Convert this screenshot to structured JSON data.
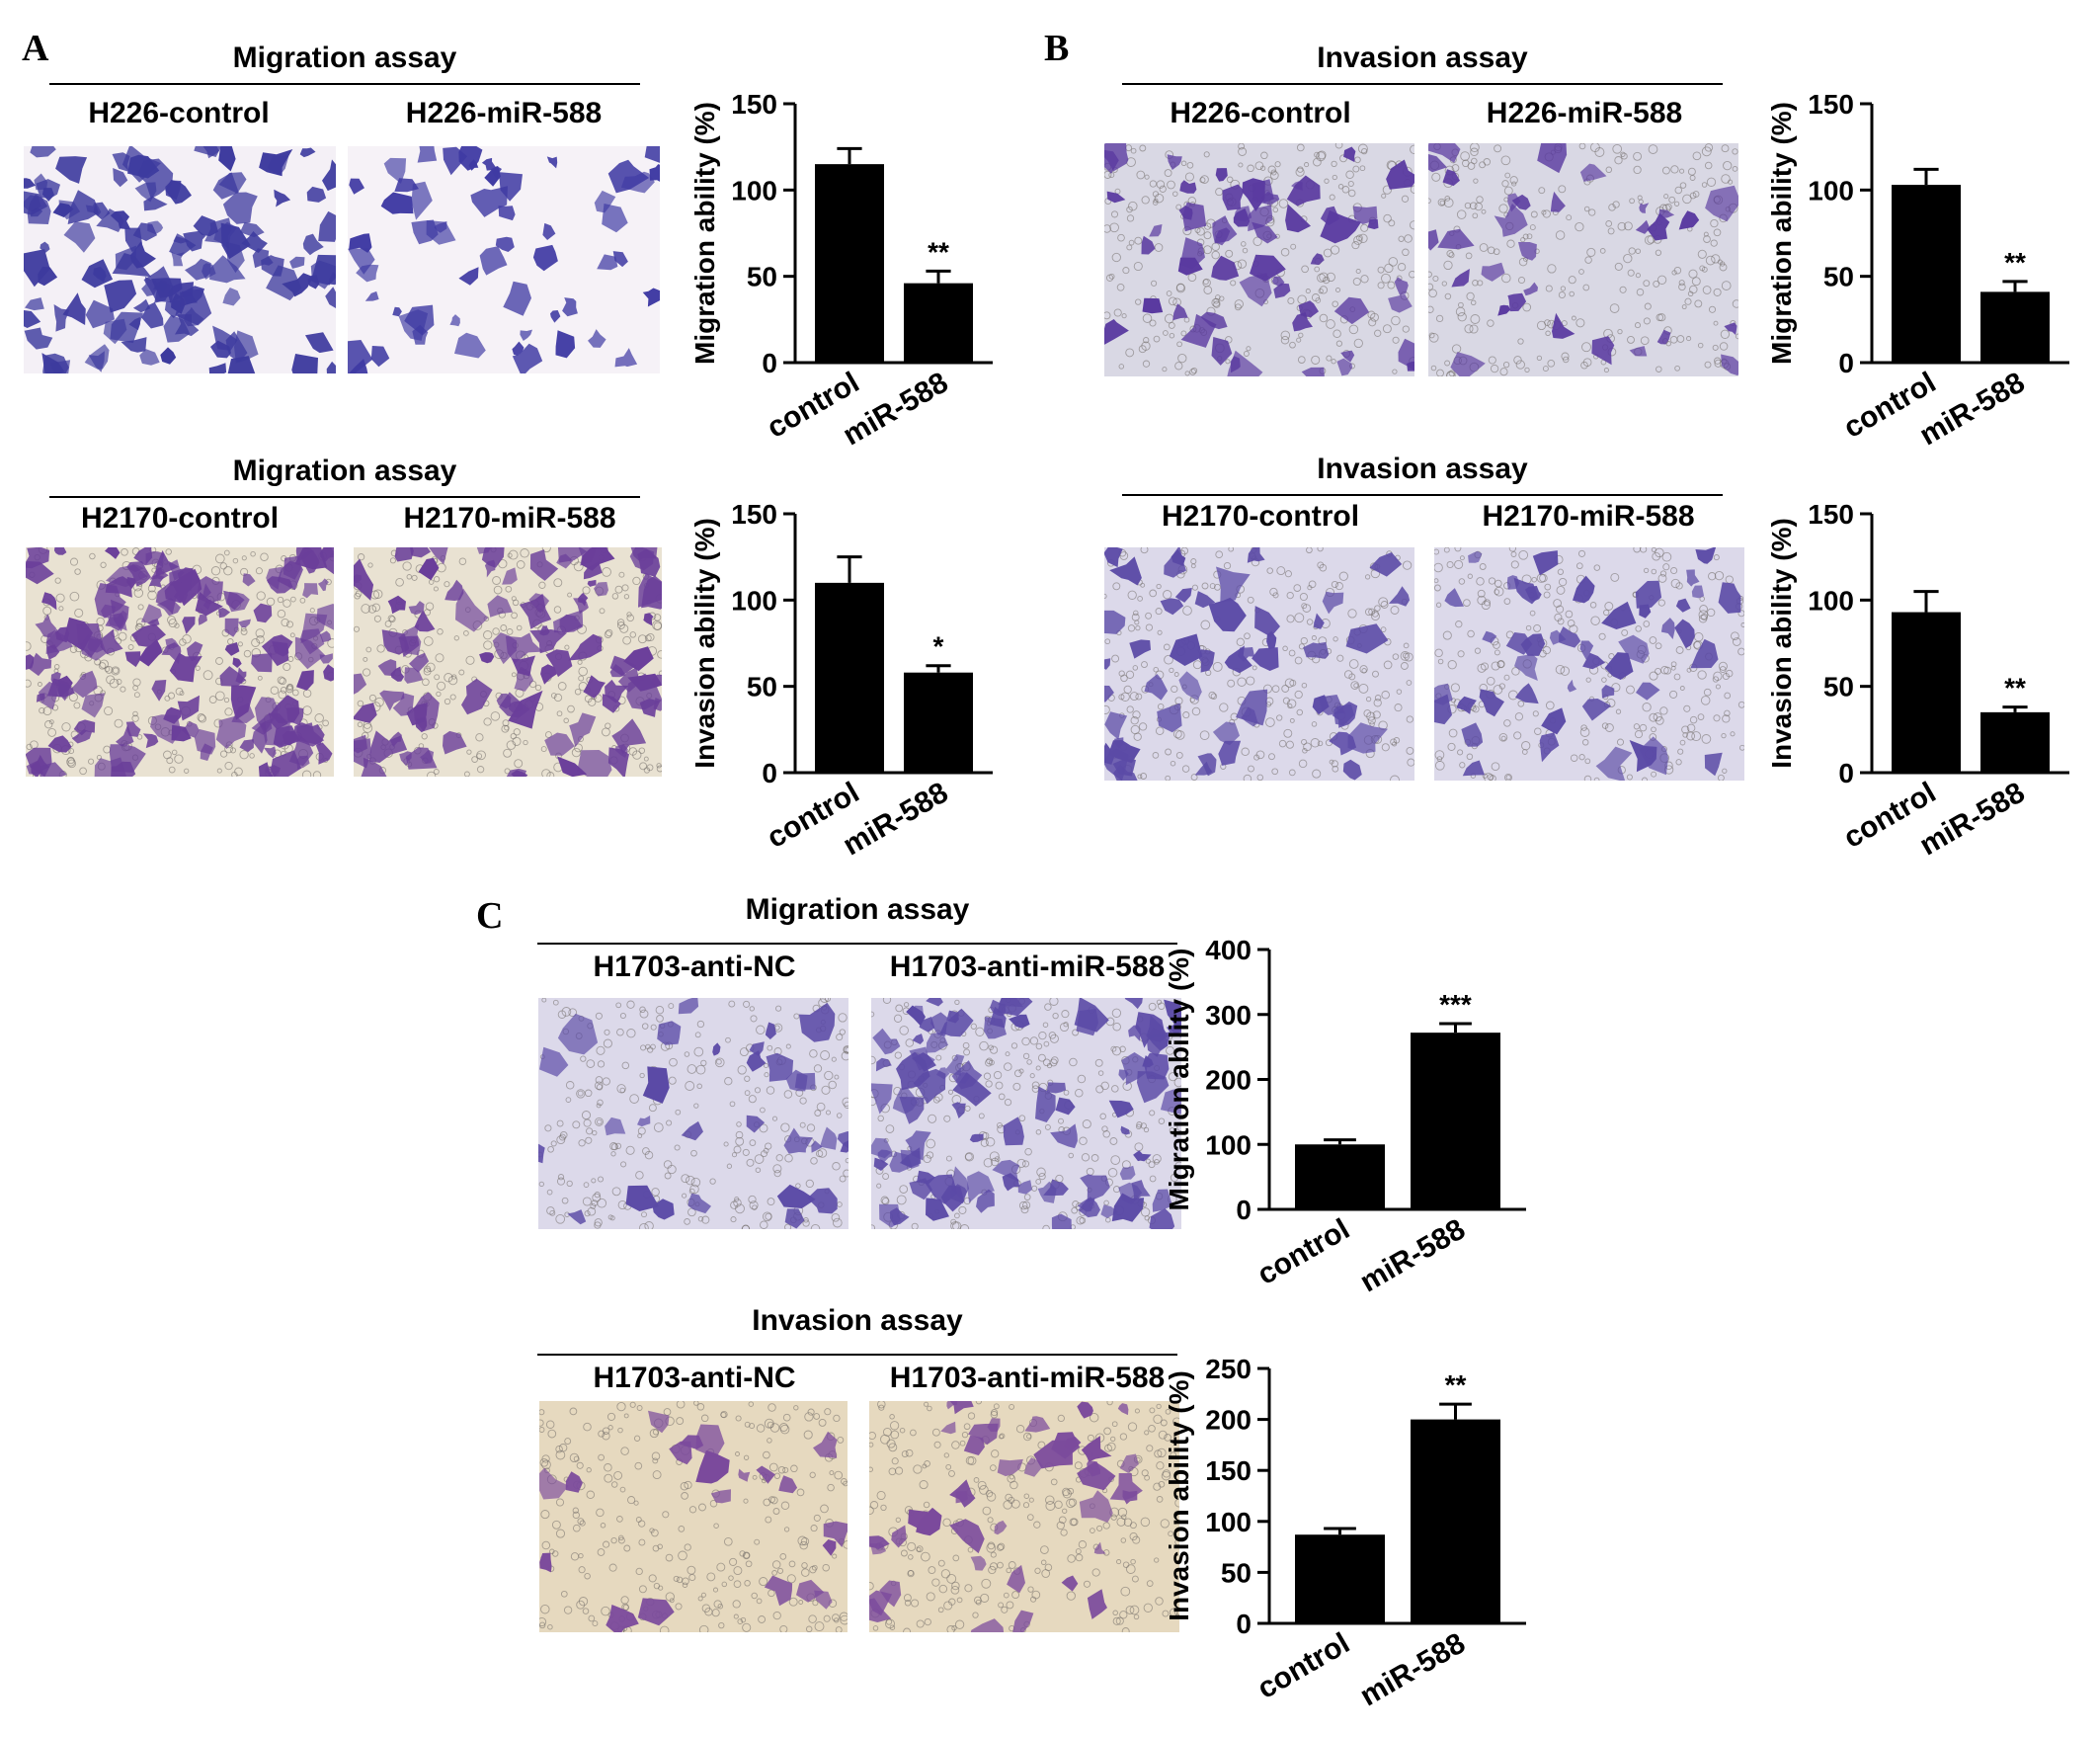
{
  "panels": {
    "a": {
      "letter": "A"
    },
    "b": {
      "letter": "B"
    },
    "c": {
      "letter": "C"
    }
  },
  "blocks": [
    {
      "id": "a1",
      "title": "Migration assay",
      "left_label": "H226-control",
      "right_label": "H226-miR-588"
    },
    {
      "id": "a2",
      "title": "Migration assay",
      "left_label": "H2170-control",
      "right_label": "H2170-miR-588"
    },
    {
      "id": "b1",
      "title": "Invasion assay",
      "left_label": "H226-control",
      "right_label": "H226-miR-588"
    },
    {
      "id": "b2",
      "title": "Invasion assay",
      "left_label": "H2170-control",
      "right_label": "H2170-miR-588"
    },
    {
      "id": "c1",
      "title": "Migration assay",
      "left_label": "H1703-anti-NC",
      "right_label": "H1703-anti-miR-588"
    },
    {
      "id": "c2",
      "title": "Invasion assay",
      "left_label": "H1703-anti-NC",
      "right_label": "H1703-anti-miR-588"
    }
  ],
  "micrograph_styles": {
    "dense_blue": {
      "background": "#f4f0f6",
      "cell_color": "#3d3a9e",
      "stain": "crystal-violet"
    },
    "sparse_blue": {
      "background": "#f6f2f7",
      "cell_color": "#3f3aa3",
      "stain": "crystal-violet"
    },
    "purple_beige": {
      "background": "#e9e2d2",
      "cell_color": "#6a3e9a",
      "stain": "crystal-violet"
    },
    "lilac_grey": {
      "background": "#d9d8e4",
      "cell_color": "#5a3aa0",
      "stain": "crystal-violet"
    },
    "light_lilac": {
      "background": "#dcd9ea",
      "cell_color": "#5b4aa6",
      "stain": "crystal-violet"
    },
    "beige_pores": {
      "background": "#e6d9bf",
      "cell_color": "#7b4a9c",
      "stain": "crystal-violet"
    }
  },
  "chart_data": [
    {
      "id": "a1",
      "type": "bar",
      "categories": [
        "control",
        "miR-588"
      ],
      "values": [
        115,
        46
      ],
      "errors": [
        9,
        7
      ],
      "significance": [
        "",
        "**"
      ],
      "ylabel": "Migration ability (%)",
      "ylim": [
        0,
        150
      ],
      "yticks": [
        0,
        50,
        100,
        150
      ],
      "bar_color": "#000000"
    },
    {
      "id": "a2",
      "type": "bar",
      "categories": [
        "control",
        "miR-588"
      ],
      "values": [
        110,
        58
      ],
      "errors": [
        15,
        4
      ],
      "significance": [
        "",
        "*"
      ],
      "ylabel": "Invasion ability (%)",
      "ylim": [
        0,
        150
      ],
      "yticks": [
        0,
        50,
        100,
        150
      ],
      "bar_color": "#000000"
    },
    {
      "id": "b1",
      "type": "bar",
      "categories": [
        "control",
        "miR-588"
      ],
      "values": [
        103,
        41
      ],
      "errors": [
        9,
        6
      ],
      "significance": [
        "",
        "**"
      ],
      "ylabel": "Migration ability (%)",
      "ylim": [
        0,
        150
      ],
      "yticks": [
        0,
        50,
        100,
        150
      ],
      "bar_color": "#000000"
    },
    {
      "id": "b2",
      "type": "bar",
      "categories": [
        "control",
        "miR-588"
      ],
      "values": [
        93,
        35
      ],
      "errors": [
        12,
        3
      ],
      "significance": [
        "",
        "**"
      ],
      "ylabel": "Invasion ability (%)",
      "ylim": [
        0,
        150
      ],
      "yticks": [
        0,
        50,
        100,
        150
      ],
      "bar_color": "#000000"
    },
    {
      "id": "c1",
      "type": "bar",
      "categories": [
        "control",
        "miR-588"
      ],
      "values": [
        100,
        272
      ],
      "errors": [
        7,
        14
      ],
      "significance": [
        "",
        "***"
      ],
      "ylabel": "Migration ability (%)",
      "ylim": [
        0,
        400
      ],
      "yticks": [
        0,
        100,
        200,
        300,
        400
      ],
      "bar_color": "#000000"
    },
    {
      "id": "c2",
      "type": "bar",
      "categories": [
        "control",
        "miR-588"
      ],
      "values": [
        87,
        200
      ],
      "errors": [
        6,
        15
      ],
      "significance": [
        "",
        "**"
      ],
      "ylabel": "Invasion ability (%)",
      "ylim": [
        0,
        250
      ],
      "yticks": [
        0,
        50,
        100,
        150,
        200,
        250
      ],
      "bar_color": "#000000"
    }
  ]
}
